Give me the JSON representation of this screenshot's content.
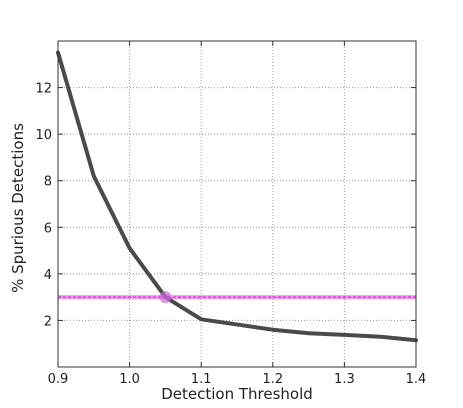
{
  "chart_data": {
    "type": "line",
    "title": "",
    "xlabel": "Detection Threshold",
    "ylabel": "% Spurious Detections",
    "xlim": [
      0.9,
      1.4
    ],
    "ylim": [
      0,
      14
    ],
    "xticks": [
      0.9,
      1.0,
      1.1,
      1.2,
      1.3,
      1.4
    ],
    "yticks": [
      2,
      4,
      6,
      8,
      10,
      12
    ],
    "xtick_labels": [
      "0.9",
      "1.0",
      "1.1",
      "1.2",
      "1.3",
      "1.4"
    ],
    "ytick_labels": [
      "2",
      "4",
      "6",
      "8",
      "10",
      "12"
    ],
    "grid": true,
    "series": [
      {
        "color": "#4a4a4a",
        "x": [
          0.9,
          0.95,
          1.0,
          1.05,
          1.1,
          1.2,
          1.25,
          1.3,
          1.35,
          1.4
        ],
        "y": [
          13.5,
          8.2,
          5.1,
          3.0,
          2.05,
          1.6,
          1.45,
          1.38,
          1.3,
          1.15
        ]
      }
    ],
    "reference_line": {
      "y": 3.0,
      "color": "#e040e0"
    },
    "marker": {
      "x": 1.05,
      "y": 3.0,
      "color": "#cc66dd"
    }
  }
}
